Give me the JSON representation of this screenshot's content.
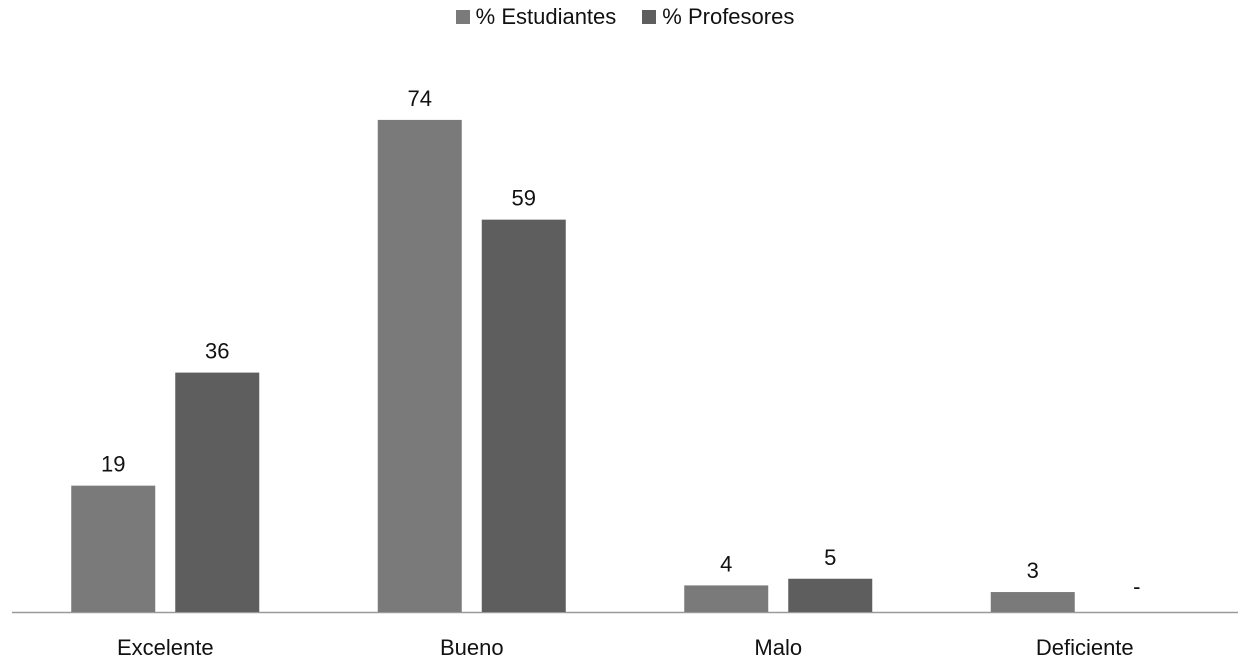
{
  "chart_data": {
    "type": "bar",
    "categories": [
      "Excelente",
      "Bueno",
      "Malo",
      "Deficiente"
    ],
    "series": [
      {
        "name": "% Estudiantes",
        "values": [
          19,
          74,
          4,
          3
        ],
        "labels": [
          "19",
          "74",
          "4",
          "3"
        ],
        "color": "#7a7a7a"
      },
      {
        "name": "% Profesores",
        "values": [
          36,
          59,
          5,
          0
        ],
        "labels": [
          "36",
          "59",
          "5",
          "-"
        ],
        "color": "#5e5e5e"
      }
    ],
    "ylim": [
      0,
      80
    ],
    "legend_position": "top",
    "grid": false,
    "value_axis_visible": false
  }
}
